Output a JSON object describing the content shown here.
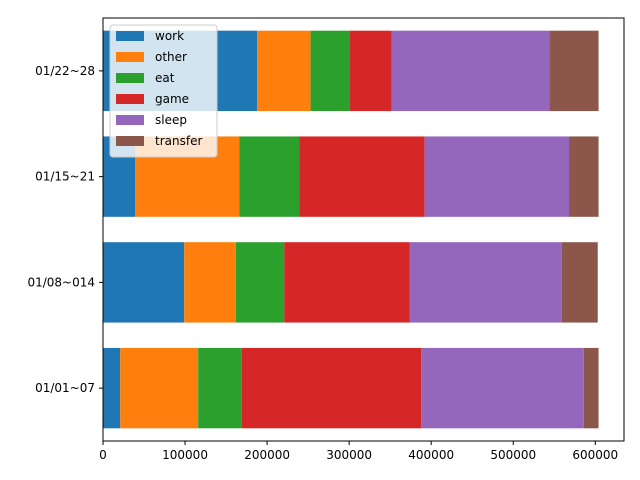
{
  "chart_data": {
    "type": "bar",
    "orientation": "horizontal",
    "stacked": true,
    "categories": [
      "01/01~07",
      "01/08~014",
      "01/15~21",
      "01/22~28"
    ],
    "series": [
      {
        "name": "work",
        "color": "#1f77b4",
        "values": [
          21000,
          99000,
          39000,
          188000
        ]
      },
      {
        "name": "other",
        "color": "#ff7f0e",
        "values": [
          95000,
          63000,
          127000,
          65000
        ]
      },
      {
        "name": "eat",
        "color": "#2ca02c",
        "values": [
          53000,
          59000,
          73000,
          48000
        ]
      },
      {
        "name": "game",
        "color": "#d62728",
        "values": [
          219000,
          153000,
          153000,
          51000
        ]
      },
      {
        "name": "sleep",
        "color": "#9467bd",
        "values": [
          198000,
          185000,
          176000,
          192000
        ]
      },
      {
        "name": "transfer",
        "color": "#8c564b",
        "values": [
          18000,
          44000,
          36000,
          60000
        ]
      }
    ],
    "xlim": [
      0,
      635000
    ],
    "xticks": [
      0,
      100000,
      200000,
      300000,
      400000,
      500000,
      600000
    ],
    "xtick_labels": [
      "0",
      "100000",
      "200000",
      "300000",
      "400000",
      "500000",
      "600000"
    ],
    "title": "",
    "xlabel": "",
    "ylabel": "",
    "grid": false,
    "legend_position": "upper-left"
  }
}
